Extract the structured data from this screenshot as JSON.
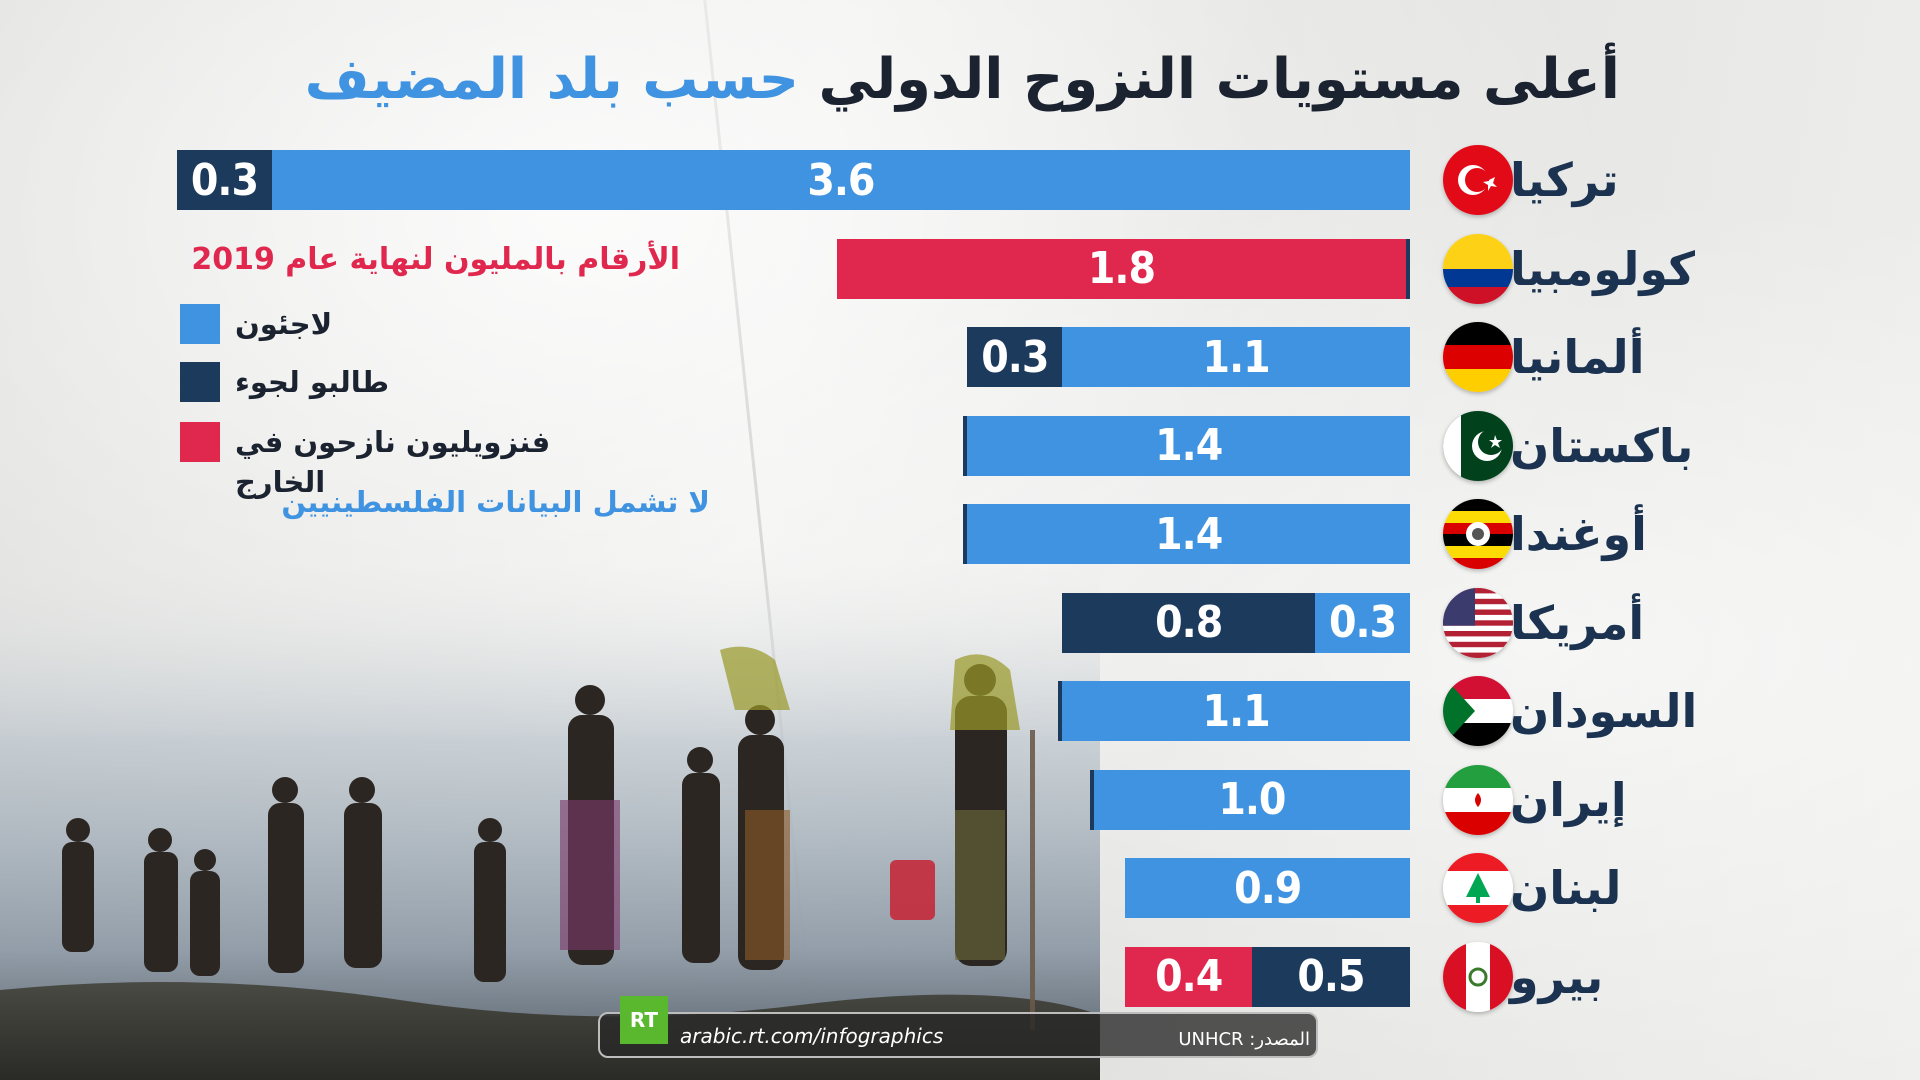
{
  "title_main": "أعلى مستويات النزوح الدولي",
  "title_accent": "حسب بلد المضيف",
  "units_note": "الأرقام بالمليون لنهاية عام 2019",
  "caveat": "لا تشمل البيانات الفلسطينيين",
  "legend": [
    {
      "label": "لاجئون",
      "color": "#3f93e0"
    },
    {
      "label": "طالبو لجوء",
      "color": "#1b3a5c"
    },
    {
      "label": "فنزويليون نازحون في الخارج",
      "color": "#e0284f"
    }
  ],
  "footer": {
    "logo": "RT",
    "url": "arabic.rt.com/infographics",
    "source": "المصدر: UNHCR"
  },
  "colors": {
    "refugees": "#3f93e0",
    "asylum": "#1b3a5c",
    "venezuelans": "#e0284f"
  },
  "chart_data": {
    "type": "bar",
    "orientation": "horizontal",
    "stacked": true,
    "categories": [
      "تركيا",
      "كولومبيا",
      "ألمانيا",
      "باكستان",
      "أوغندا",
      "أمريكا",
      "السودان",
      "إيران",
      "لبنان",
      "بيرو"
    ],
    "flags": [
      "turkey-flag-icon",
      "colombia-flag-icon",
      "germany-flag-icon",
      "pakistan-flag-icon",
      "uganda-flag-icon",
      "usa-flag-icon",
      "sudan-flag-icon",
      "iran-flag-icon",
      "lebanon-flag-icon",
      "peru-flag-icon"
    ],
    "rows": [
      {
        "segments": [
          {
            "series": "refugees",
            "value": 3.6,
            "label": "3.6"
          },
          {
            "series": "asylum",
            "value": 0.3,
            "label": "0.3"
          }
        ]
      },
      {
        "segments": [
          {
            "series": "asylum",
            "value": 0.01,
            "label": ""
          },
          {
            "series": "venezuelans",
            "value": 1.8,
            "label": "1.8"
          }
        ]
      },
      {
        "segments": [
          {
            "series": "refugees",
            "value": 1.1,
            "label": "1.1"
          },
          {
            "series": "asylum",
            "value": 0.3,
            "label": "0.3"
          }
        ]
      },
      {
        "segments": [
          {
            "series": "refugees",
            "value": 1.4,
            "label": "1.4"
          },
          {
            "series": "asylum",
            "value": 0.01,
            "label": ""
          }
        ]
      },
      {
        "segments": [
          {
            "series": "refugees",
            "value": 1.4,
            "label": "1.4"
          },
          {
            "series": "asylum",
            "value": 0.01,
            "label": ""
          }
        ]
      },
      {
        "segments": [
          {
            "series": "refugees",
            "value": 0.3,
            "label": "0.3"
          },
          {
            "series": "asylum",
            "value": 0.8,
            "label": "0.8"
          }
        ]
      },
      {
        "segments": [
          {
            "series": "refugees",
            "value": 1.1,
            "label": "1.1"
          },
          {
            "series": "asylum",
            "value": 0.01,
            "label": ""
          }
        ]
      },
      {
        "segments": [
          {
            "series": "refugees",
            "value": 1.0,
            "label": "1.0"
          },
          {
            "series": "asylum",
            "value": 0.01,
            "label": ""
          }
        ]
      },
      {
        "segments": [
          {
            "series": "refugees",
            "value": 0.9,
            "label": "0.9"
          }
        ]
      },
      {
        "segments": [
          {
            "series": "asylum",
            "value": 0.5,
            "label": "0.5"
          },
          {
            "series": "venezuelans",
            "value": 0.4,
            "label": "0.4"
          }
        ]
      }
    ],
    "xlim": [
      0,
      3.9
    ],
    "grid": false,
    "legend_position": "left"
  }
}
